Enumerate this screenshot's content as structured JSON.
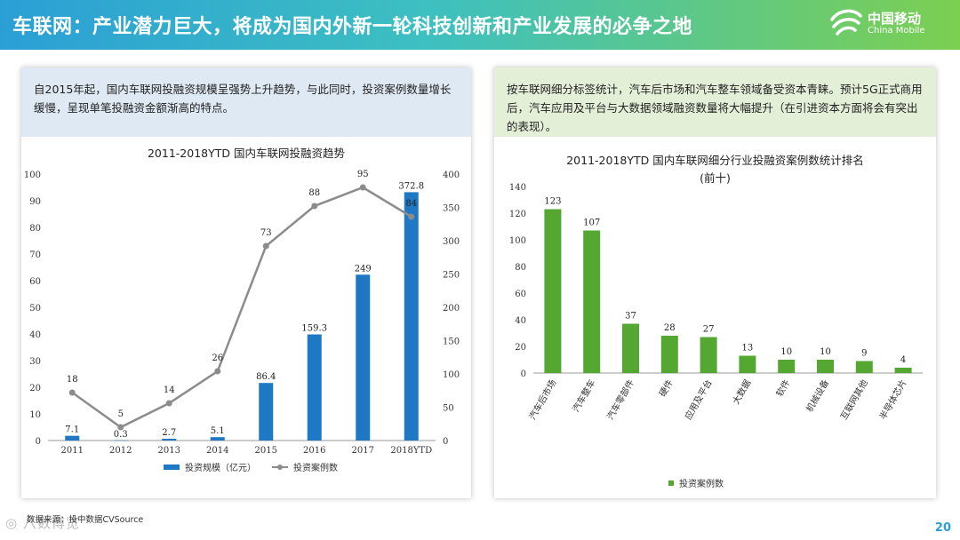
{
  "header": {
    "title": "车联网：产业潜力巨大，将成为国内外新一轮科技创新和产业发展的必争之地",
    "logo_cn": "中国移动",
    "logo_en": "China Mobile"
  },
  "left": {
    "intro": "自2015年起，国内车联网投融资规模呈强势上升趋势，与此同时，投资案例数量增长缓慢，呈现单笔投融资金额渐高的特点。",
    "legend_bar": "投资规模（亿元）",
    "legend_line": "投资案例数"
  },
  "right": {
    "intro": "按车联网细分标签统计，汽车后市场和汽车整车领域备受资本青睐。预计5G正式商用后，汽车应用及平台与大数据领域融资数量将大幅提升（在引进资本方面将会有突出的表现）。",
    "legend": "投资案例数"
  },
  "footer": {
    "source": "数据来源：投中数据CVSource",
    "watermark": "◎ 八数博览",
    "page": "20"
  },
  "colors": {
    "bar_blue": "#1f78c4",
    "line_gray": "#8c8c8c",
    "bar_green": "#54a832"
  },
  "chart_data": [
    {
      "type": "bar+line",
      "title": "2011-2018YTD 国内车联网投融资趋势",
      "categories": [
        "2011",
        "2012",
        "2013",
        "2014",
        "2015",
        "2016",
        "2017",
        "2018YTD"
      ],
      "series": [
        {
          "name": "投资规模（亿元）",
          "type": "bar",
          "axis": "right",
          "values": [
            7.1,
            0.3,
            2.7,
            5.1,
            86.4,
            159.3,
            249,
            372.8
          ]
        },
        {
          "name": "投资案例数",
          "type": "line",
          "axis": "left",
          "values": [
            18,
            5,
            14,
            26,
            73,
            88,
            95,
            84
          ]
        }
      ],
      "y_left": {
        "min": 0,
        "max": 100,
        "ticks": [
          0,
          10,
          20,
          30,
          40,
          50,
          60,
          70,
          80,
          90,
          100
        ]
      },
      "y_right": {
        "min": 0,
        "max": 400,
        "ticks": [
          0,
          50,
          100,
          150,
          200,
          250,
          300,
          350,
          400
        ]
      }
    },
    {
      "type": "bar",
      "title": "2011-2018YTD 国内车联网细分行业投融资案例数统计排名",
      "subtitle": "(前十)",
      "categories": [
        "汽车后市场",
        "汽车整车",
        "汽车零部件",
        "硬件",
        "应用及平台",
        "大数据",
        "软件",
        "机械设备",
        "互联网其他",
        "半导体芯片"
      ],
      "values": [
        123,
        107,
        37,
        28,
        27,
        13,
        10,
        10,
        9,
        4
      ],
      "series_name": "投资案例数",
      "ylim": [
        0,
        140
      ],
      "ticks": [
        0,
        20,
        40,
        60,
        80,
        100,
        120,
        140
      ]
    }
  ]
}
